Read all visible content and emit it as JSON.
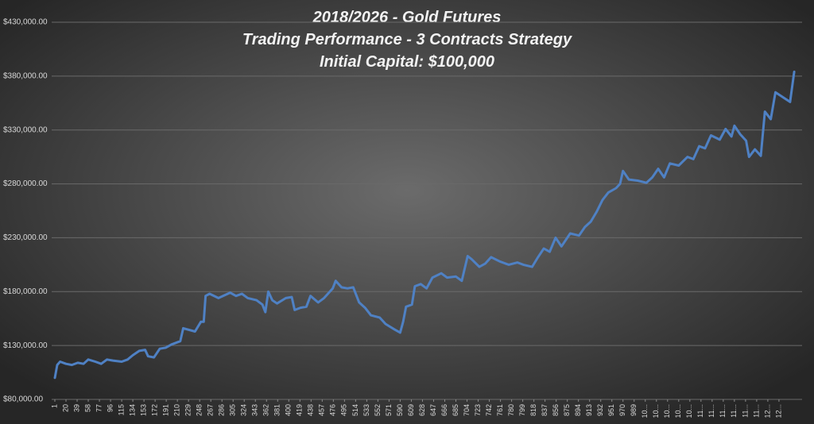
{
  "chart_data": {
    "type": "line",
    "title": "2018/2026 - Gold Futures",
    "subtitle": "Trading Performance - 3 Contracts Strategy",
    "annotation": "Initial Capital: $100,000",
    "color": "#4f81c4",
    "grid": true,
    "xlim": [
      1,
      1270
    ],
    "ylim": [
      80000,
      430000
    ],
    "yticks": [
      {
        "value": 80000,
        "label": "$80,000.00"
      },
      {
        "value": 130000,
        "label": "$130,000.00"
      },
      {
        "value": 180000,
        "label": "$180,000.00"
      },
      {
        "value": 230000,
        "label": "$230,000.00"
      },
      {
        "value": 280000,
        "label": "$280,000.00"
      },
      {
        "value": 330000,
        "label": "$330,000.00"
      },
      {
        "value": 380000,
        "label": "$380,000.00"
      },
      {
        "value": 430000,
        "label": "$430,000.00"
      }
    ],
    "xticks": [
      1,
      20,
      39,
      58,
      77,
      96,
      115,
      134,
      153,
      172,
      191,
      210,
      229,
      248,
      267,
      286,
      305,
      324,
      343,
      362,
      381,
      400,
      419,
      438,
      457,
      476,
      495,
      514,
      533,
      552,
      571,
      590,
      609,
      628,
      647,
      666,
      685,
      704,
      723,
      742,
      761,
      780,
      799,
      818,
      837,
      856,
      875,
      894,
      913,
      932,
      951,
      970,
      989,
      {
        "value": 1008,
        "label": "10..."
      },
      {
        "value": 1027,
        "label": "10..."
      },
      {
        "value": 1046,
        "label": "10..."
      },
      {
        "value": 1065,
        "label": "10..."
      },
      {
        "value": 1084,
        "label": "10..."
      },
      {
        "value": 1103,
        "label": "11..."
      },
      {
        "value": 1122,
        "label": "11..."
      },
      {
        "value": 1141,
        "label": "11..."
      },
      {
        "value": 1160,
        "label": "11..."
      },
      {
        "value": 1179,
        "label": "11..."
      },
      {
        "value": 1198,
        "label": "11..."
      },
      {
        "value": 1217,
        "label": "12..."
      },
      {
        "value": 1236,
        "label": "12..."
      }
    ],
    "x": [
      1,
      5,
      10,
      20,
      30,
      40,
      50,
      58,
      70,
      80,
      90,
      100,
      115,
      125,
      134,
      145,
      155,
      160,
      170,
      180,
      190,
      200,
      215,
      220,
      240,
      250,
      255,
      258,
      265,
      280,
      300,
      310,
      320,
      330,
      345,
      355,
      360,
      365,
      372,
      380,
      395,
      405,
      410,
      420,
      430,
      437,
      450,
      460,
      475,
      480,
      490,
      500,
      510,
      520,
      530,
      540,
      555,
      565,
      580,
      590,
      595,
      600,
      610,
      615,
      625,
      635,
      645,
      660,
      670,
      685,
      695,
      705,
      712,
      725,
      735,
      745,
      760,
      775,
      790,
      800,
      815,
      825,
      835,
      845,
      855,
      865,
      880,
      895,
      905,
      915,
      925,
      935,
      945,
      958,
      965,
      970,
      980,
      995,
      1010,
      1020,
      1030,
      1040,
      1050,
      1065,
      1080,
      1090,
      1100,
      1110,
      1120,
      1135,
      1145,
      1155,
      1160,
      1170,
      1180,
      1185,
      1195,
      1205,
      1212,
      1222,
      1230,
      1255,
      1262
    ],
    "values": [
      100000,
      112000,
      115000,
      113000,
      112000,
      114000,
      113000,
      117000,
      115000,
      113000,
      117000,
      116000,
      115000,
      117000,
      121000,
      125000,
      126000,
      120000,
      119000,
      127000,
      128000,
      131000,
      134000,
      146000,
      143000,
      152000,
      152000,
      176000,
      178000,
      174000,
      179000,
      176000,
      178000,
      174000,
      172000,
      168000,
      161000,
      180000,
      172000,
      169000,
      174000,
      175000,
      163000,
      165000,
      166000,
      176000,
      170000,
      174000,
      183000,
      190000,
      184000,
      183000,
      184000,
      170000,
      165000,
      158000,
      156000,
      150000,
      145000,
      142000,
      152000,
      166000,
      168000,
      185000,
      187000,
      183000,
      193000,
      197000,
      193000,
      194000,
      190000,
      213000,
      210000,
      203000,
      206000,
      212000,
      208000,
      205000,
      207000,
      205000,
      203000,
      212000,
      220000,
      217000,
      230000,
      222000,
      234000,
      232000,
      240000,
      245000,
      254000,
      265000,
      272000,
      276000,
      280000,
      292000,
      284000,
      283000,
      281000,
      286000,
      294000,
      286000,
      299000,
      297000,
      305000,
      303000,
      315000,
      313000,
      325000,
      321000,
      331000,
      324000,
      334000,
      326000,
      320000,
      305000,
      312000,
      306000,
      347000,
      340000,
      365000,
      356000,
      384000
    ]
  }
}
